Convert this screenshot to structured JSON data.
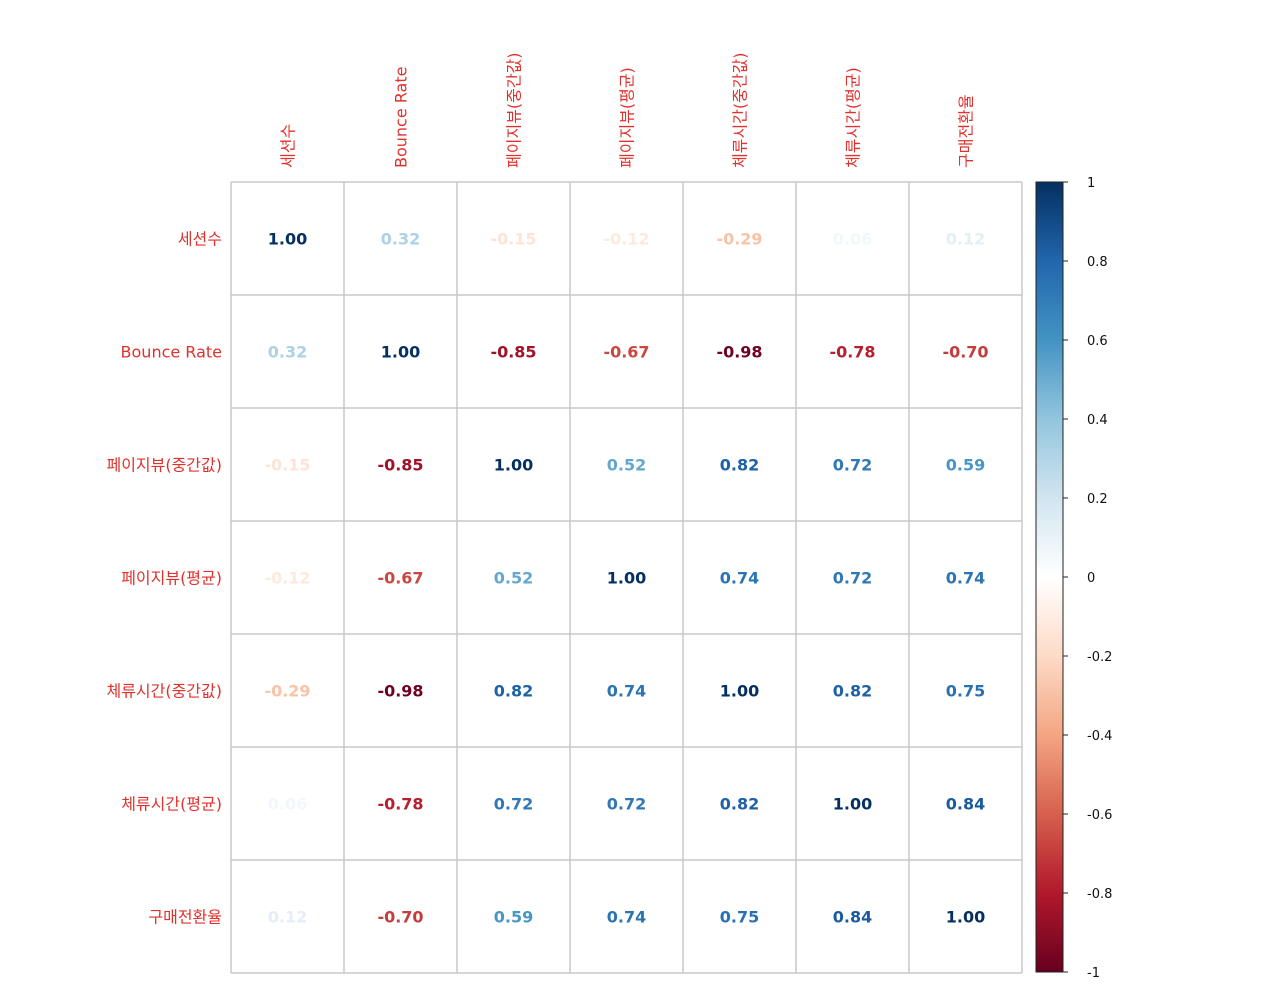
{
  "chart_data": {
    "type": "heatmap",
    "variables": [
      "세션수",
      "Bounce Rate",
      "페이지뷰(중간값)",
      "페이지뷰(평균)",
      "체류시간(중간값)",
      "체류시간(평균)",
      "구매전환율"
    ],
    "matrix": [
      [
        1.0,
        0.32,
        -0.15,
        -0.12,
        -0.29,
        0.06,
        0.12
      ],
      [
        0.32,
        1.0,
        -0.85,
        -0.67,
        -0.98,
        -0.78,
        -0.7
      ],
      [
        -0.15,
        -0.85,
        1.0,
        0.52,
        0.82,
        0.72,
        0.59
      ],
      [
        -0.12,
        -0.67,
        0.52,
        1.0,
        0.74,
        0.72,
        0.74
      ],
      [
        -0.29,
        -0.98,
        0.82,
        0.74,
        1.0,
        0.82,
        0.75
      ],
      [
        0.06,
        -0.78,
        0.72,
        0.72,
        0.82,
        1.0,
        0.84
      ],
      [
        0.12,
        -0.7,
        0.59,
        0.74,
        0.75,
        0.84,
        1.0
      ]
    ],
    "value_format": "2 decimals",
    "colorbar": {
      "min": -1,
      "max": 1,
      "ticks": [
        "1",
        "0.8",
        "0.6",
        "0.4",
        "0.2",
        "0",
        "-0.2",
        "-0.4",
        "-0.6",
        "-0.8",
        "-1"
      ]
    },
    "colors": {
      "label": "#e0322d",
      "grid": "#c8c8c8",
      "colorbar_stops": [
        "#67001f",
        "#b2182b",
        "#d6604d",
        "#f4a582",
        "#fddbc7",
        "#ffffff",
        "#d1e5f0",
        "#92c5de",
        "#4393c3",
        "#2166ac",
        "#053061"
      ]
    }
  }
}
